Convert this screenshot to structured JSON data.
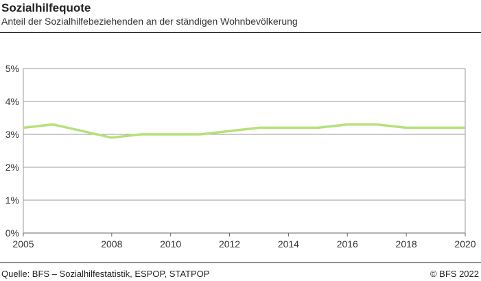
{
  "header": {
    "title": "Sozialhilfequote",
    "subtitle": "Anteil der Sozialhilfebeziehenden an der ständigen Wohnbevölkerung"
  },
  "footer": {
    "source": "Quelle: BFS – Sozialhilfestatistik, ESPOP, STATPOP",
    "copyright": "© BFS 2022"
  },
  "chart_data": {
    "type": "line",
    "title": "Sozialhilfequote",
    "xlabel": "",
    "ylabel": "",
    "x": [
      2005,
      2006,
      2007,
      2008,
      2009,
      2010,
      2011,
      2012,
      2013,
      2014,
      2015,
      2016,
      2017,
      2018,
      2019,
      2020
    ],
    "series": [
      {
        "name": "Sozialhilfequote",
        "color": "#b5e17a",
        "values": [
          3.2,
          3.3,
          3.1,
          2.9,
          3.0,
          3.0,
          3.0,
          3.1,
          3.2,
          3.2,
          3.2,
          3.3,
          3.3,
          3.2,
          3.2,
          3.2
        ]
      }
    ],
    "xlim": [
      2005,
      2020
    ],
    "ylim": [
      0,
      5
    ],
    "x_ticks": [
      2005,
      2008,
      2010,
      2012,
      2014,
      2016,
      2018,
      2020
    ],
    "y_ticks": [
      0,
      1,
      2,
      3,
      4,
      5
    ],
    "y_tick_labels": [
      "0%",
      "1%",
      "2%",
      "3%",
      "4%",
      "5%"
    ],
    "grid": true,
    "legend": "none"
  }
}
